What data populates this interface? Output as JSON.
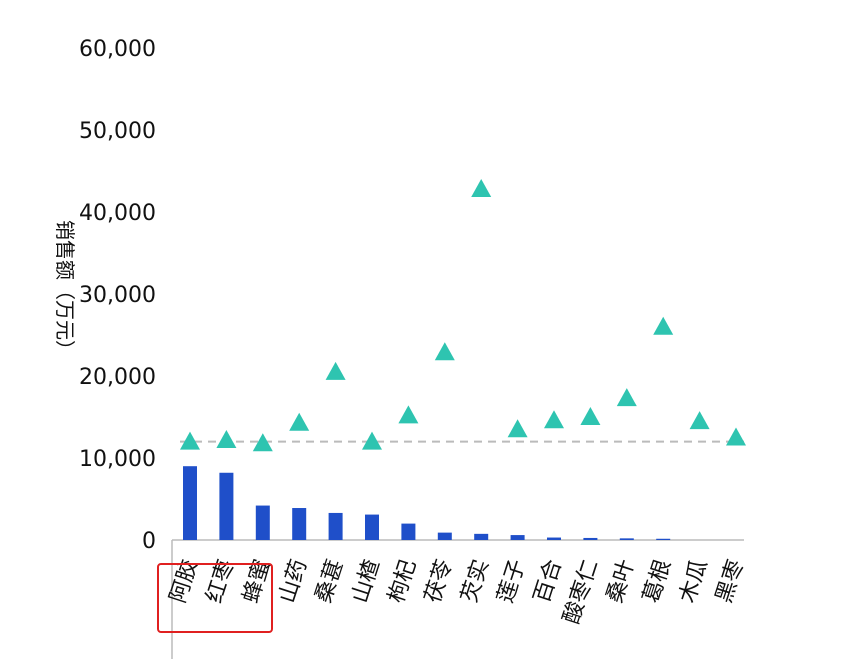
{
  "chart_data": {
    "type": "bar",
    "title": "",
    "ylabel": "销售额（万元）",
    "xlabel": "",
    "ylim": [
      0,
      60000
    ],
    "yticks": [
      "0",
      "10,000",
      "20,000",
      "30,000",
      "40,000",
      "50,000",
      "60,000"
    ],
    "categories": [
      "阿胶",
      "红枣",
      "蜂蜜",
      "山药",
      "桑葚",
      "山楂",
      "枸杞",
      "茯苓",
      "芡实",
      "莲子",
      "百合",
      "酸枣仁",
      "桑叶",
      "葛根",
      "木瓜",
      "黑枣"
    ],
    "series": [
      {
        "type": "bar",
        "color": "#1f4fc9",
        "values": [
          9000,
          8200,
          4200,
          3900,
          3300,
          3100,
          2000,
          900,
          750,
          600,
          300,
          250,
          200,
          150,
          0,
          0
        ]
      },
      {
        "type": "scatter",
        "marker": "triangle",
        "color": "#2ec4b0",
        "values": [
          12000,
          12200,
          11800,
          14300,
          20500,
          12000,
          15200,
          22900,
          42800,
          13500,
          14600,
          15000,
          17300,
          26000,
          14500,
          12500
        ]
      }
    ],
    "reference_line": {
      "value": 12000,
      "style": "dashed",
      "color": "#bbbbbb"
    },
    "highlight_box": {
      "categories": [
        "阿胶",
        "红枣",
        "蜂蜜"
      ],
      "color": "#e02020"
    },
    "grid": false,
    "legend": "none"
  }
}
